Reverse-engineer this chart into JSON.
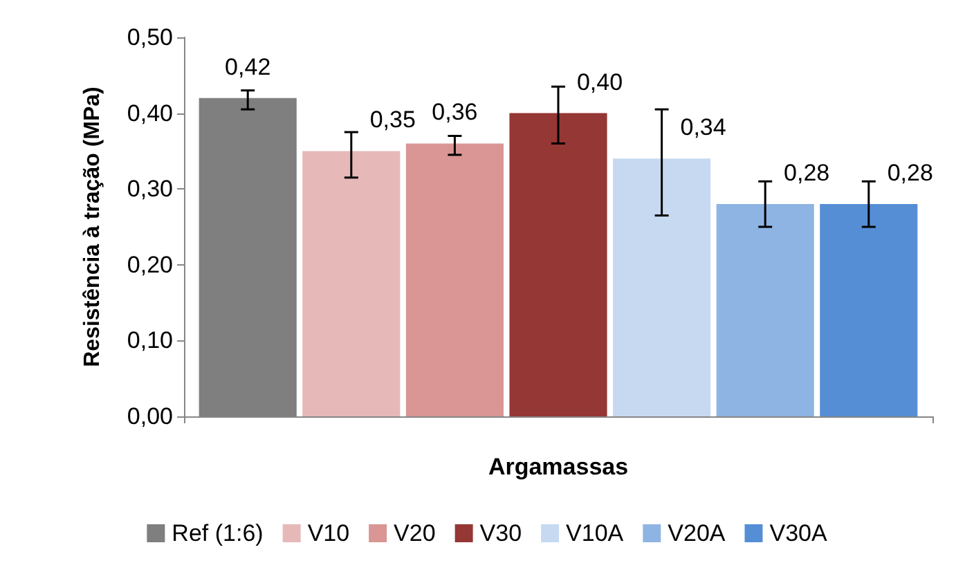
{
  "chart_data": {
    "type": "bar",
    "xlabel": "Argamassas",
    "ylabel": "Resistência à tração (MPa)",
    "categories": [
      null
    ],
    "series": [
      {
        "name": "Ref (1:6)",
        "color": "#7f7f7f",
        "values": [
          0.42
        ],
        "errors": [
          [
            0.405,
            0.43
          ]
        ],
        "value_labels": [
          "0,42"
        ]
      },
      {
        "name": "V10",
        "color": "#e6b9b8",
        "values": [
          0.35
        ],
        "errors": [
          [
            0.315,
            0.375
          ]
        ],
        "value_labels": [
          "0,35"
        ]
      },
      {
        "name": "V20",
        "color": "#d99694",
        "values": [
          0.36
        ],
        "errors": [
          [
            0.345,
            0.37
          ]
        ],
        "value_labels": [
          "0,36"
        ]
      },
      {
        "name": "V30",
        "color": "#953735",
        "values": [
          0.4
        ],
        "errors": [
          [
            0.36,
            0.435
          ]
        ],
        "value_labels": [
          "0,40"
        ]
      },
      {
        "name": "V10A",
        "color": "#c6d9f1",
        "values": [
          0.34
        ],
        "errors": [
          [
            0.265,
            0.405
          ]
        ],
        "value_labels": [
          "0,34"
        ]
      },
      {
        "name": "V20A",
        "color": "#8eb4e3",
        "values": [
          0.28
        ],
        "errors": [
          [
            0.25,
            0.31
          ]
        ],
        "value_labels": [
          "0,28"
        ]
      },
      {
        "name": "V30A",
        "color": "#558ed5",
        "values": [
          0.28
        ],
        "errors": [
          [
            0.25,
            0.31
          ]
        ],
        "value_labels": [
          "0,28"
        ]
      }
    ],
    "ylim": [
      0,
      0.5
    ],
    "yticks": [
      {
        "value": 0,
        "label": "0,00"
      },
      {
        "value": 0.1,
        "label": "0,10"
      },
      {
        "value": 0.2,
        "label": "0,20"
      },
      {
        "value": 0.3,
        "label": "0,30"
      },
      {
        "value": 0.4,
        "label": "0,40"
      },
      {
        "value": 0.5,
        "label": "0,50"
      }
    ],
    "grid": false,
    "legend": "bottom"
  }
}
